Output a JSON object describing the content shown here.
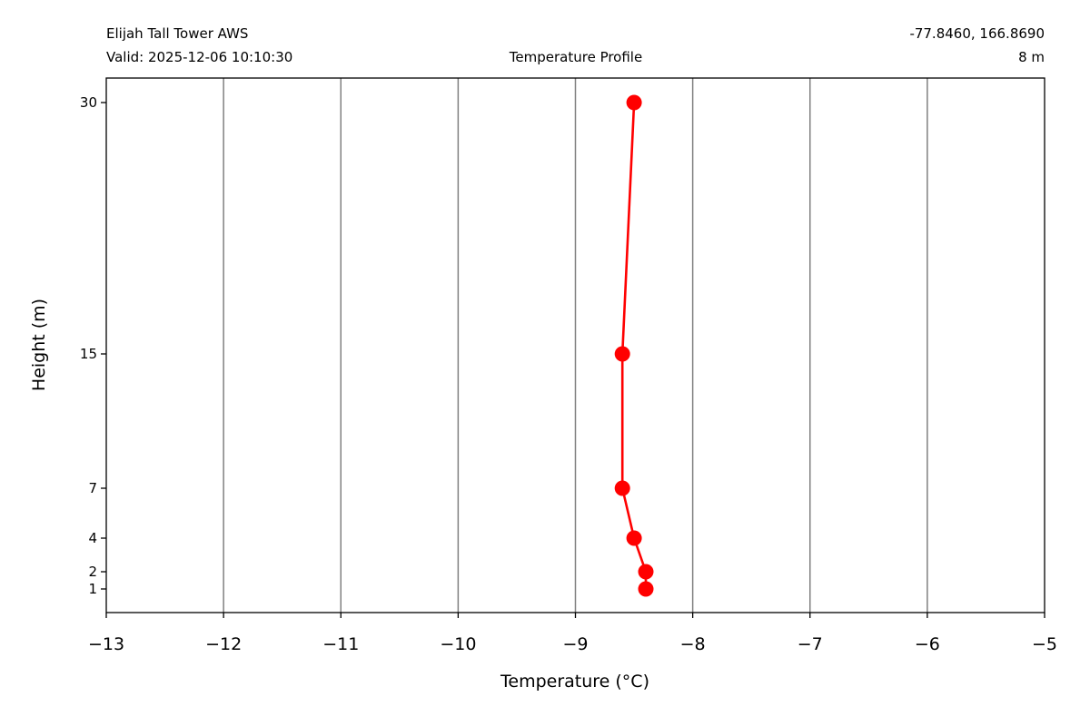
{
  "header": {
    "station": "Elijah Tall Tower AWS",
    "valid": "Valid: 2025-12-06 10:10:30",
    "title": "Temperature Profile",
    "coords": "-77.8460, 166.8690",
    "elevation": "8 m"
  },
  "chart_data": {
    "type": "line",
    "title": "Temperature Profile",
    "xlabel": "Temperature ($^\\circ$C)",
    "xlabel_display": "Temperature (°C)",
    "ylabel": "Height (m)",
    "xlim": [
      -13,
      -5
    ],
    "ylim": [
      -0.2,
      31.3
    ],
    "y_scale": "piecewise (ticks at measurement heights)",
    "grid": "vertical lines at x ticks",
    "x_ticks": [
      -13,
      -12,
      -11,
      -10,
      -9,
      -8,
      -7,
      -6,
      -5
    ],
    "x_tick_labels": [
      "−13",
      "−12",
      "−11",
      "−10",
      "−9",
      "−8",
      "−7",
      "−6",
      "−5"
    ],
    "y_ticks": [
      1,
      2,
      4,
      7,
      15,
      30
    ],
    "y_tick_labels": [
      "1",
      "2",
      "4",
      "7",
      "15",
      "30"
    ],
    "series": [
      {
        "color": "#ff0000",
        "x": [
          -8.4,
          -8.4,
          -8.5,
          -8.6,
          -8.6,
          -8.5
        ],
        "y": [
          1,
          2,
          4,
          7,
          15,
          30
        ]
      }
    ]
  }
}
